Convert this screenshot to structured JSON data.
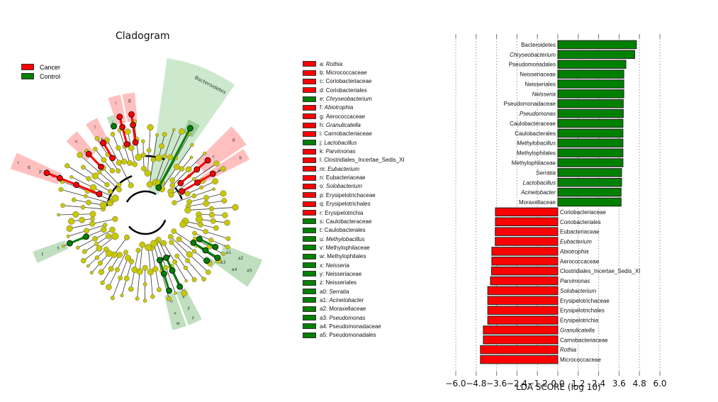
{
  "cladogram": {
    "title": "Cladogram",
    "groups": [
      {
        "name": "Cancer",
        "color": "#ff0000"
      },
      {
        "name": "Control",
        "color": "#008000"
      }
    ],
    "node_color": "#c8c800",
    "clade_labels": [
      {
        "key": "a",
        "name": "Rothia",
        "group": "Cancer",
        "italic": true
      },
      {
        "key": "b",
        "name": "Micrococcaceae",
        "group": "Cancer",
        "italic": false
      },
      {
        "key": "c",
        "name": "Coriobacteriaceae",
        "group": "Cancer",
        "italic": false
      },
      {
        "key": "d",
        "name": "Coriobacteriales",
        "group": "Cancer",
        "italic": false
      },
      {
        "key": "e",
        "name": "Chryseobacterium",
        "group": "Control",
        "italic": true
      },
      {
        "key": "f",
        "name": "Abiotrophia",
        "group": "Cancer",
        "italic": true
      },
      {
        "key": "g",
        "name": "Aerococcaceae",
        "group": "Cancer",
        "italic": false
      },
      {
        "key": "h",
        "name": "Granulicatella",
        "group": "Cancer",
        "italic": true
      },
      {
        "key": "i",
        "name": "Carnobacteriaceae",
        "group": "Cancer",
        "italic": false
      },
      {
        "key": "j",
        "name": "Lactobacillus",
        "group": "Control",
        "italic": true
      },
      {
        "key": "k",
        "name": "Parvimonas",
        "group": "Cancer",
        "italic": true
      },
      {
        "key": "l",
        "name": "Clostridiales_Incertae_Sedis_XI",
        "group": "Cancer",
        "italic": false
      },
      {
        "key": "m",
        "name": "Eubacterium",
        "group": "Cancer",
        "italic": true
      },
      {
        "key": "n",
        "name": "Eubacteriaceae",
        "group": "Cancer",
        "italic": false
      },
      {
        "key": "o",
        "name": "Solobacterium",
        "group": "Cancer",
        "italic": true
      },
      {
        "key": "p",
        "name": "Erysipelotrichaceae",
        "group": "Cancer",
        "italic": false
      },
      {
        "key": "q",
        "name": "Erysipelotrichales",
        "group": "Cancer",
        "italic": false
      },
      {
        "key": "r",
        "name": "Erysipelotrichia",
        "group": "Cancer",
        "italic": false
      },
      {
        "key": "s",
        "name": "Caulobacteraceae",
        "group": "Control",
        "italic": false
      },
      {
        "key": "t",
        "name": "Caulobacterales",
        "group": "Control",
        "italic": false
      },
      {
        "key": "u",
        "name": "Methylobacillus",
        "group": "Control",
        "italic": true
      },
      {
        "key": "v",
        "name": "Methylophilaceae",
        "group": "Control",
        "italic": false
      },
      {
        "key": "w",
        "name": "Methylophilales",
        "group": "Control",
        "italic": false
      },
      {
        "key": "x",
        "name": "Neisseria",
        "group": "Control",
        "italic": true
      },
      {
        "key": "y",
        "name": "Neisseriaceae",
        "group": "Control",
        "italic": false
      },
      {
        "key": "z",
        "name": "Neisseriales",
        "group": "Control",
        "italic": false
      },
      {
        "key": "a0",
        "name": "Serratia",
        "group": "Control",
        "italic": true
      },
      {
        "key": "a1",
        "name": "Acinetobacter",
        "group": "Control",
        "italic": true
      },
      {
        "key": "a2",
        "name": "Moraxellaceae",
        "group": "Control",
        "italic": false
      },
      {
        "key": "a3",
        "name": "Pseudomonas",
        "group": "Control",
        "italic": true
      },
      {
        "key": "a4",
        "name": "Pseudomonadaceae",
        "group": "Control",
        "italic": false
      },
      {
        "key": "a5",
        "name": "Pseudomonadales",
        "group": "Control",
        "italic": false
      }
    ],
    "highlight_label": "Bacteroidetes"
  },
  "chart_data": {
    "type": "bar",
    "orientation": "horizontal",
    "title": "",
    "xlabel": "LDA SCORE (log 10)",
    "ylabel": "",
    "xlim": [
      -6.0,
      6.0
    ],
    "xticks": [
      -6.0,
      -4.8,
      -3.6,
      -2.4,
      -1.2,
      0.0,
      1.2,
      2.4,
      3.6,
      4.8,
      6.0
    ],
    "xtick_labels": [
      "−6.0",
      "−4.8",
      "−3.6",
      "−2.4",
      "−1.2",
      "0.0",
      "1.2",
      "2.4",
      "3.6",
      "4.8",
      "6.0"
    ],
    "grid": "vertical dotted",
    "series": [
      {
        "name": "Control",
        "color": "#008000"
      },
      {
        "name": "Cancer",
        "color": "#ff0000"
      }
    ],
    "bars": [
      {
        "label": "Bacteroidetes",
        "value": 4.62,
        "group": "Control",
        "italic": false
      },
      {
        "label": "Chryseobacterium",
        "value": 4.52,
        "group": "Control",
        "italic": true
      },
      {
        "label": "Pseudomonadales",
        "value": 4.0,
        "group": "Control",
        "italic": false
      },
      {
        "label": "Neisseriaceae",
        "value": 3.88,
        "group": "Control",
        "italic": false
      },
      {
        "label": "Neisseriales",
        "value": 3.88,
        "group": "Control",
        "italic": false
      },
      {
        "label": "Neisseria",
        "value": 3.88,
        "group": "Control",
        "italic": true
      },
      {
        "label": "Pseudomonadaceae",
        "value": 3.85,
        "group": "Control",
        "italic": false
      },
      {
        "label": "Pseudomonas",
        "value": 3.85,
        "group": "Control",
        "italic": true
      },
      {
        "label": "Caulobacteraceae",
        "value": 3.83,
        "group": "Control",
        "italic": false
      },
      {
        "label": "Caulobacterales",
        "value": 3.83,
        "group": "Control",
        "italic": false
      },
      {
        "label": "Methylobacillus",
        "value": 3.83,
        "group": "Control",
        "italic": true
      },
      {
        "label": "Methylophilales",
        "value": 3.83,
        "group": "Control",
        "italic": false
      },
      {
        "label": "Methylophilaceae",
        "value": 3.83,
        "group": "Control",
        "italic": false
      },
      {
        "label": "Serratia",
        "value": 3.75,
        "group": "Control",
        "italic": true
      },
      {
        "label": "Lactobacillus",
        "value": 3.75,
        "group": "Control",
        "italic": true
      },
      {
        "label": "Acinetobacter",
        "value": 3.72,
        "group": "Control",
        "italic": true
      },
      {
        "label": "Moraxellaceae",
        "value": 3.72,
        "group": "Control",
        "italic": false
      },
      {
        "label": "Coriobacteriaceae",
        "value": -3.67,
        "group": "Cancer",
        "italic": false
      },
      {
        "label": "Coriobacteriales",
        "value": -3.67,
        "group": "Cancer",
        "italic": false
      },
      {
        "label": "Eubacteriaceae",
        "value": -3.68,
        "group": "Cancer",
        "italic": false
      },
      {
        "label": "Eubacterium",
        "value": -3.68,
        "group": "Cancer",
        "italic": true
      },
      {
        "label": "Abiotrophia",
        "value": -3.88,
        "group": "Cancer",
        "italic": true
      },
      {
        "label": "Aerococcaceae",
        "value": -3.88,
        "group": "Cancer",
        "italic": false
      },
      {
        "label": "Clostridiales_Incertae_Sedis_XI",
        "value": -3.9,
        "group": "Cancer",
        "italic": false
      },
      {
        "label": "Parvimonas",
        "value": -3.96,
        "group": "Cancer",
        "italic": true
      },
      {
        "label": "Solobacterium",
        "value": -4.12,
        "group": "Cancer",
        "italic": true
      },
      {
        "label": "Erysipelotrichaceae",
        "value": -4.12,
        "group": "Cancer",
        "italic": false
      },
      {
        "label": "Erysipelotrichales",
        "value": -4.12,
        "group": "Cancer",
        "italic": false
      },
      {
        "label": "Erysipelotrichia",
        "value": -4.12,
        "group": "Cancer",
        "italic": false
      },
      {
        "label": "Granulicatella",
        "value": -4.38,
        "group": "Cancer",
        "italic": true
      },
      {
        "label": "Carnobacteriaceae",
        "value": -4.38,
        "group": "Cancer",
        "italic": false
      },
      {
        "label": "Rothia",
        "value": -4.55,
        "group": "Cancer",
        "italic": true
      },
      {
        "label": "Micrococcaceae",
        "value": -4.55,
        "group": "Cancer",
        "italic": false
      }
    ]
  }
}
